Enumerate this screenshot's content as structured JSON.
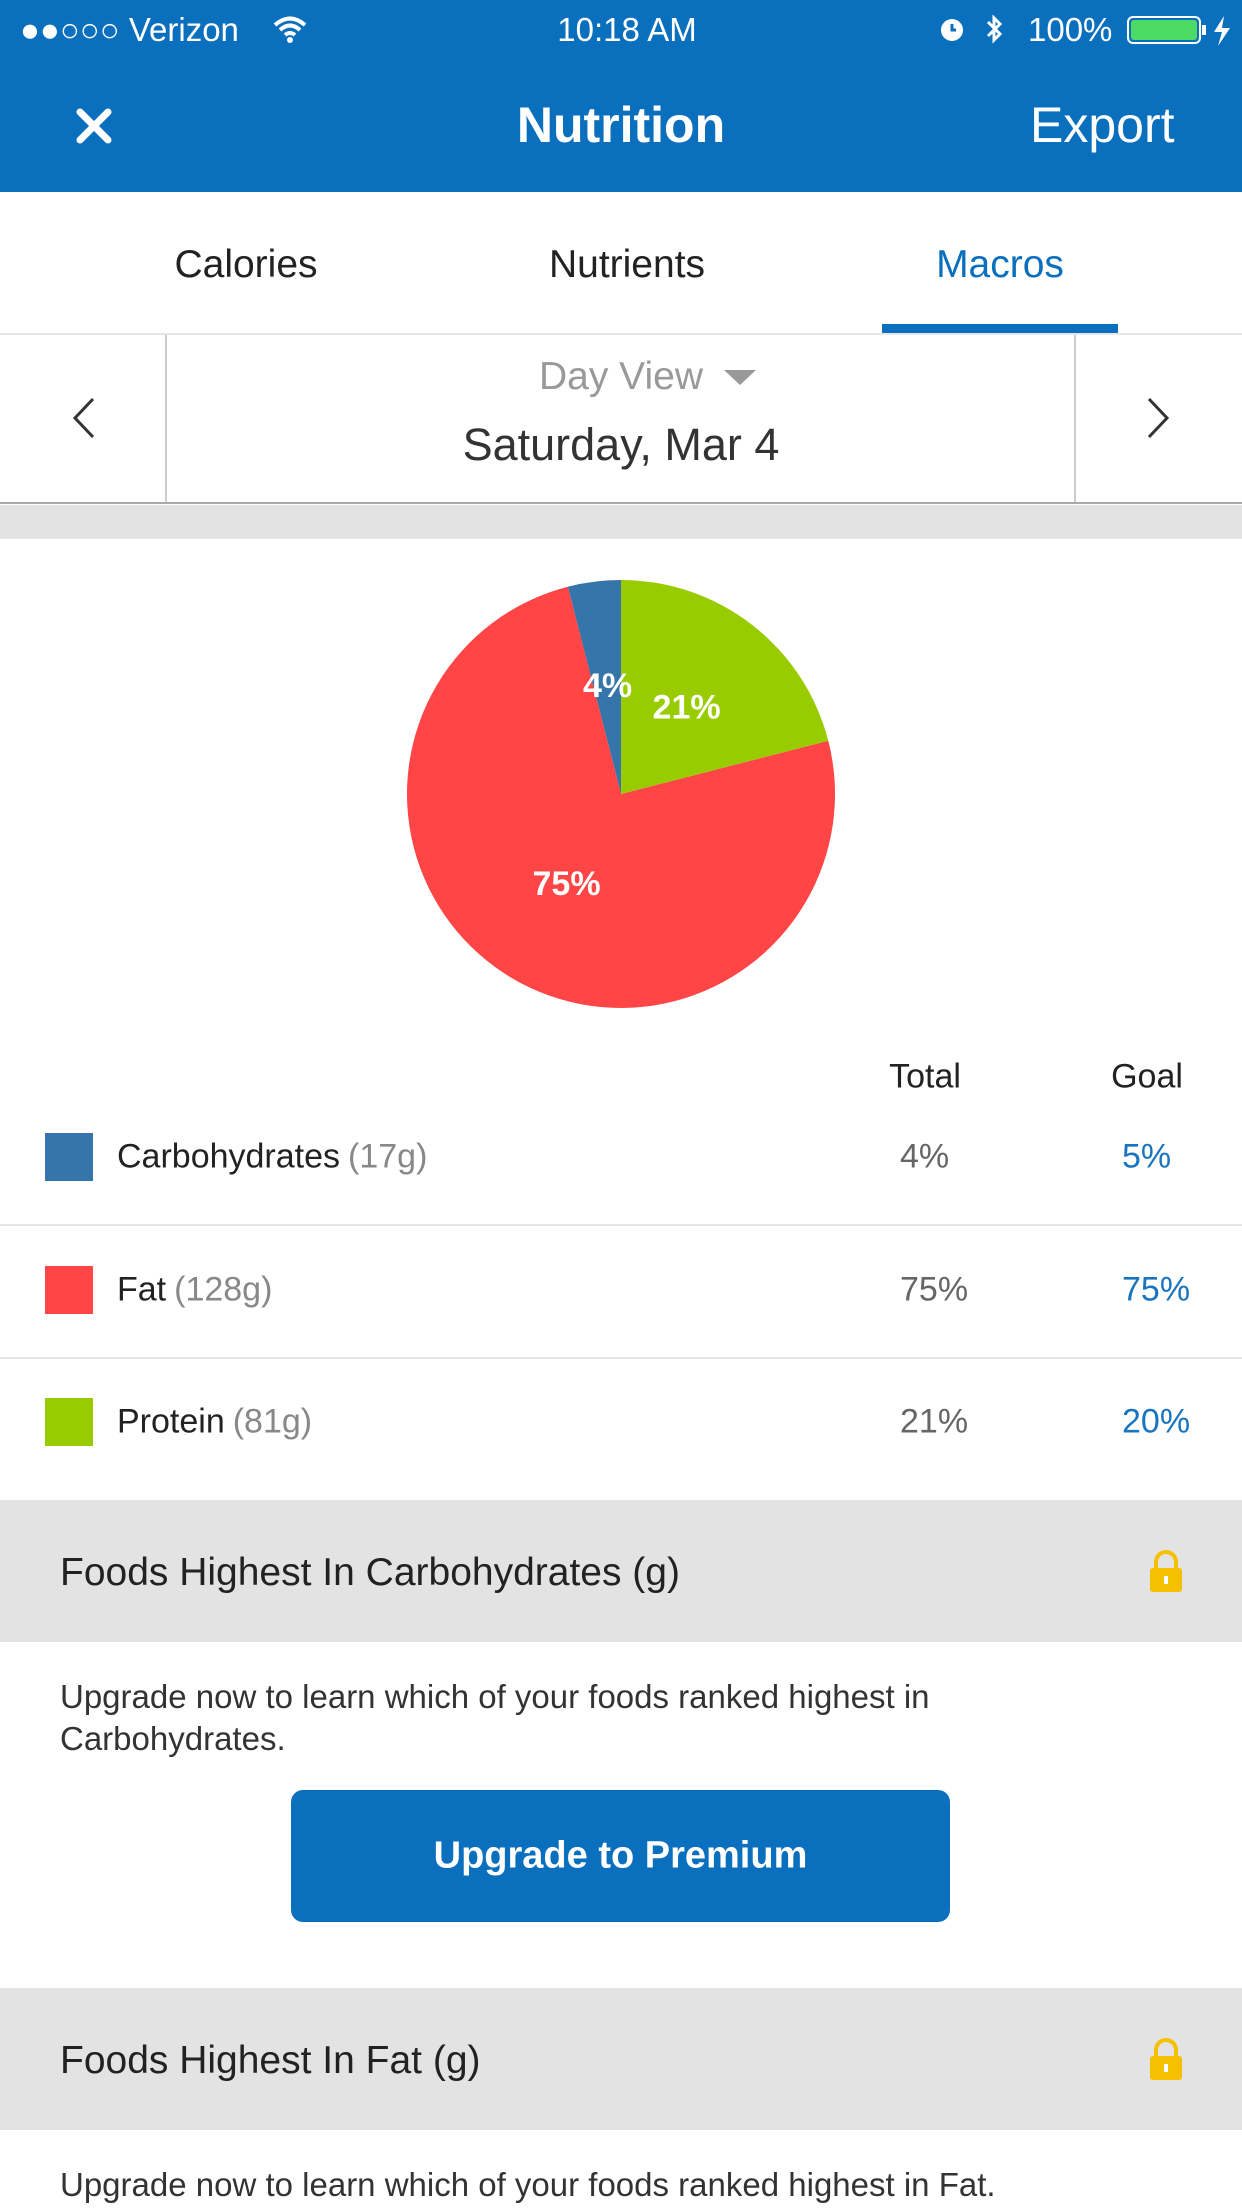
{
  "status_bar": {
    "carrier": "●●○○○ Verizon",
    "time": "10:18 AM",
    "battery": "100%"
  },
  "nav": {
    "title": "Nutrition",
    "action": "Export"
  },
  "tabs": {
    "items": [
      "Calories",
      "Nutrients",
      "Macros"
    ],
    "active": 2
  },
  "date_bar": {
    "view": "Day View",
    "date": "Saturday, Mar 4"
  },
  "chart_data": {
    "type": "pie",
    "categories": [
      "Carbohydrates",
      "Fat",
      "Protein"
    ],
    "values": [
      4,
      75,
      21
    ],
    "value_labels": [
      "4%",
      "75%",
      "21%"
    ],
    "colors": [
      "#3575a9",
      "#ff4545",
      "#99cc00"
    ]
  },
  "table": {
    "headers": [
      "Total",
      "Goal"
    ],
    "amounts": [
      "(17g)",
      "(128g)",
      "(81g)"
    ],
    "goals": [
      "5%",
      "75%",
      "20%"
    ]
  },
  "sections": [
    {
      "title": "Foods Highest In Carbohydrates (g)",
      "text": "Upgrade now to learn which of your foods ranked highest in Carbohydrates.",
      "button": "Upgrade to Premium"
    },
    {
      "title": "Foods Highest In Fat (g)",
      "text": "Upgrade now to learn which of your foods ranked highest in Fat."
    }
  ]
}
